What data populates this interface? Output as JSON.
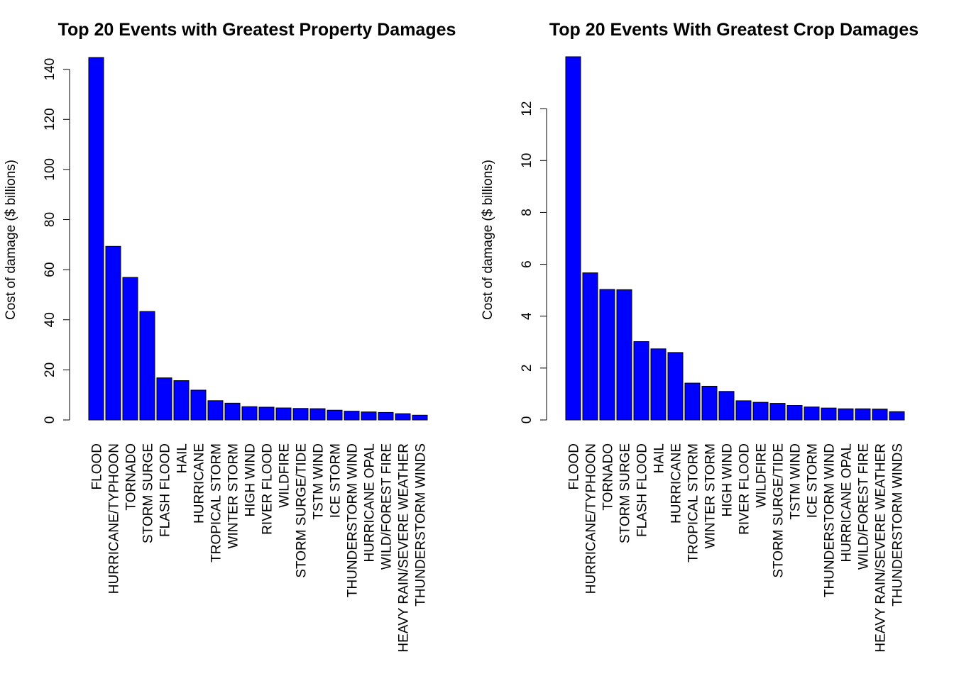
{
  "chart_data": [
    {
      "type": "bar",
      "title": "Top 20 Events with Greatest Property Damages",
      "xlabel": "",
      "ylabel": "Cost of damage ($ billions)",
      "ylim": [
        0,
        145
      ],
      "yticks": [
        0,
        20,
        40,
        60,
        80,
        100,
        120,
        140
      ],
      "bar_color": "#0000ff",
      "categories": [
        "FLOOD",
        "HURRICANE/TYPHOON",
        "TORNADO",
        "STORM SURGE",
        "FLASH FLOOD",
        "HAIL",
        "HURRICANE",
        "TROPICAL STORM",
        "WINTER STORM",
        "HIGH WIND",
        "RIVER FLOOD",
        "WILDFIRE",
        "STORM SURGE/TIDE",
        "TSTM WIND",
        "ICE STORM",
        "THUNDERSTORM WIND",
        "HURRICANE OPAL",
        "WILD/FOREST FIRE",
        "HEAVY RAIN/SEVERE WEATHER",
        "THUNDERSTORM WINDS"
      ],
      "values": [
        144.7,
        69.3,
        56.9,
        43.3,
        16.8,
        15.7,
        11.9,
        7.7,
        6.7,
        5.3,
        5.1,
        4.8,
        4.6,
        4.5,
        3.9,
        3.5,
        3.2,
        3.0,
        2.5,
        1.9
      ]
    },
    {
      "type": "bar",
      "title": "Top 20 Events With Greatest Crop Damages",
      "xlabel": "",
      "ylabel": "Cost of damage ($ billions)",
      "ylim": [
        0,
        14
      ],
      "yticks": [
        0,
        2,
        4,
        6,
        8,
        10,
        12
      ],
      "bar_color": "#0000ff",
      "categories": [
        "FLOOD",
        "HURRICANE/TYPHOON",
        "TORNADO",
        "STORM SURGE",
        "FLASH FLOOD",
        "HAIL",
        "HURRICANE",
        "TROPICAL STORM",
        "WINTER STORM",
        "HIGH WIND",
        "RIVER FLOOD",
        "WILDFIRE",
        "STORM SURGE/TIDE",
        "TSTM WIND",
        "ICE STORM",
        "THUNDERSTORM WIND",
        "HURRICANE OPAL",
        "WILD/FOREST FIRE",
        "HEAVY RAIN/SEVERE WEATHER",
        "THUNDERSTORM WINDS"
      ],
      "values": [
        14.0,
        5.67,
        5.03,
        5.02,
        3.02,
        2.74,
        2.6,
        1.42,
        1.3,
        1.1,
        0.74,
        0.68,
        0.64,
        0.56,
        0.5,
        0.46,
        0.43,
        0.43,
        0.42,
        0.32
      ]
    }
  ]
}
